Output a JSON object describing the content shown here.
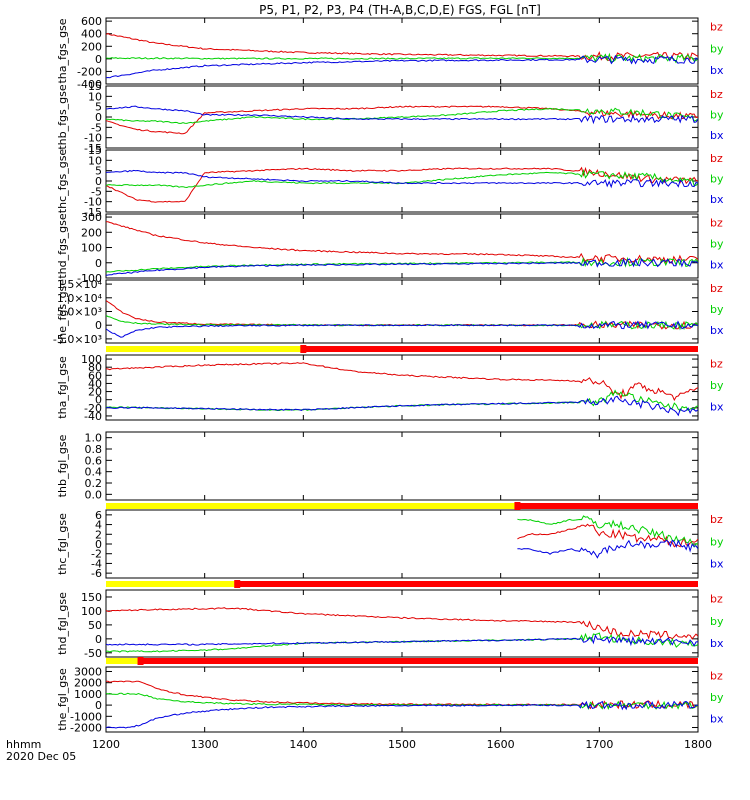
{
  "title": "P5, P1, P2, P3, P4 (TH-A,B,C,D,E) FGS, FGL [nT]",
  "x_axis": {
    "label_line1": "hhmm",
    "label_line2": "2020 Dec 05",
    "ticks": [
      "1200",
      "1300",
      "1400",
      "1500",
      "1600",
      "1700",
      "1800"
    ],
    "range": [
      1200,
      1800
    ]
  },
  "colors": {
    "bz": "#e00000",
    "by": "#00d000",
    "bx": "#0000e0",
    "bar_yellow": "#ffff00",
    "bar_red": "#ff0000"
  },
  "chart_data": [
    {
      "type": "line",
      "ylabel": "tha_fgs_gse",
      "ylim": [
        -400,
        650
      ],
      "yticks": [
        "600",
        "400",
        "200",
        "0",
        "-200",
        "-400"
      ],
      "legend": [
        "bz",
        "by",
        "bx"
      ],
      "x": [
        1200,
        1250,
        1300,
        1400,
        1500,
        1600,
        1700,
        1800
      ],
      "series": [
        {
          "name": "bz",
          "values": [
            400,
            250,
            160,
            100,
            70,
            55,
            40,
            40
          ]
        },
        {
          "name": "by",
          "values": [
            10,
            10,
            5,
            5,
            5,
            10,
            10,
            5
          ]
        },
        {
          "name": "bx",
          "values": [
            -300,
            -180,
            -110,
            -60,
            -30,
            -20,
            -10,
            -10
          ]
        }
      ]
    },
    {
      "type": "line",
      "ylabel": "thb_fgs_gse",
      "ylim": [
        -15,
        15
      ],
      "yticks": [
        "15",
        "10",
        "5",
        "0",
        "-5",
        "-10",
        "-15"
      ],
      "legend": [
        "bz",
        "by",
        "bx"
      ],
      "x": [
        1200,
        1230,
        1250,
        1280,
        1300,
        1350,
        1400,
        1450,
        1500,
        1550,
        1600,
        1650,
        1700,
        1750,
        1800
      ],
      "series": [
        {
          "name": "bz",
          "values": [
            -2,
            -6,
            -7,
            -8,
            2,
            3,
            4,
            4,
            5,
            5,
            5,
            4,
            2,
            1,
            0
          ]
        },
        {
          "name": "by",
          "values": [
            -1,
            -2,
            -2,
            -3,
            -2,
            0,
            -1,
            -1,
            0,
            1,
            3,
            4,
            3,
            2,
            -1
          ]
        },
        {
          "name": "bx",
          "values": [
            4,
            5,
            4,
            3,
            1,
            1,
            0,
            -1,
            -1,
            -1,
            -1,
            -1,
            -1,
            -1,
            -1
          ]
        }
      ]
    },
    {
      "type": "line",
      "ylabel": "thc_fgs_gse",
      "ylim": [
        -15,
        15
      ],
      "yticks": [
        "15",
        "10",
        "5",
        "0",
        "-5",
        "-10",
        "-15"
      ],
      "legend": [
        "bz",
        "by",
        "bx"
      ],
      "x": [
        1200,
        1230,
        1250,
        1280,
        1300,
        1350,
        1400,
        1450,
        1500,
        1550,
        1600,
        1650,
        1700,
        1750,
        1800
      ],
      "series": [
        {
          "name": "bz",
          "values": [
            -2,
            -9,
            -10,
            -10,
            4,
            5,
            6,
            5,
            5,
            6,
            6,
            6,
            4,
            1,
            0
          ]
        },
        {
          "name": "by",
          "values": [
            -2,
            -2,
            -2,
            -3,
            -2,
            0,
            -1,
            -1,
            -1,
            1,
            3,
            4,
            3,
            2,
            -1
          ]
        },
        {
          "name": "bx",
          "values": [
            4,
            5,
            4,
            4,
            2,
            1,
            0,
            0,
            -1,
            -1,
            -1,
            -1,
            -1,
            -1,
            -1
          ]
        }
      ]
    },
    {
      "type": "line",
      "ylabel": "thd_fgs_gse",
      "ylim": [
        -100,
        320
      ],
      "yticks": [
        "300",
        "200",
        "100",
        "0",
        "-100"
      ],
      "legend": [
        "bz",
        "by",
        "bx"
      ],
      "x": [
        1200,
        1250,
        1300,
        1350,
        1400,
        1500,
        1600,
        1700,
        1800
      ],
      "series": [
        {
          "name": "bz",
          "values": [
            270,
            180,
            130,
            100,
            80,
            60,
            55,
            30,
            20
          ]
        },
        {
          "name": "by",
          "values": [
            -60,
            -40,
            -25,
            -15,
            -10,
            -5,
            0,
            5,
            0
          ]
        },
        {
          "name": "bx",
          "values": [
            -80,
            -50,
            -30,
            -20,
            -15,
            -10,
            -5,
            0,
            0
          ]
        }
      ]
    },
    {
      "type": "line",
      "ylabel": "the_fgs_gse",
      "ylim": [
        -6500,
        16500
      ],
      "yticks": [
        "1.5×10⁴",
        "1.0×10⁴",
        "5.0×10³",
        "0",
        "-5.0×10³"
      ],
      "legend": [
        "bz",
        "by",
        "bx"
      ],
      "bar": [
        [
          "yellow",
          1200,
          1400
        ],
        [
          "red",
          1400,
          1800
        ]
      ],
      "x": [
        1200,
        1215,
        1230,
        1250,
        1300,
        1350,
        1400,
        1420,
        1800
      ],
      "series": [
        {
          "name": "bz",
          "values": [
            9000,
            5000,
            2500,
            1200,
            400,
            200,
            100,
            50,
            20
          ]
        },
        {
          "name": "by",
          "values": [
            3500,
            1500,
            800,
            400,
            150,
            80,
            40,
            20,
            10
          ]
        },
        {
          "name": "bx",
          "values": [
            -1500,
            -4500,
            -2000,
            -800,
            -300,
            -150,
            -80,
            -40,
            -10
          ]
        }
      ]
    },
    {
      "type": "line",
      "ylabel": "tha_fgl_gse",
      "ylim": [
        -50,
        110
      ],
      "yticks": [
        "100",
        "80",
        "60",
        "40",
        "20",
        "0",
        "-20",
        "-40"
      ],
      "legend": [
        "bz",
        "by",
        "bx"
      ],
      "x": [
        1200,
        1250,
        1300,
        1350,
        1400,
        1450,
        1500,
        1550,
        1600,
        1650,
        1700,
        1720,
        1740,
        1760,
        1780,
        1800
      ],
      "series": [
        {
          "name": "bz",
          "values": [
            75,
            80,
            85,
            88,
            90,
            70,
            60,
            55,
            50,
            48,
            45,
            10,
            35,
            20,
            5,
            30
          ]
        },
        {
          "name": "by",
          "values": [
            -18,
            -20,
            -22,
            -25,
            -25,
            -20,
            -15,
            -12,
            -10,
            -8,
            -5,
            20,
            0,
            -10,
            -20,
            -15
          ]
        },
        {
          "name": "bx",
          "values": [
            -20,
            -20,
            -22,
            -24,
            -25,
            -20,
            -15,
            -12,
            -10,
            -8,
            -5,
            0,
            -10,
            -20,
            -30,
            -25
          ]
        }
      ]
    },
    {
      "type": "line",
      "ylabel": "thb_fgl_gse",
      "ylim": [
        -0.1,
        1.1
      ],
      "yticks": [
        "1.0",
        "0.8",
        "0.6",
        "0.4",
        "0.2",
        "0.0"
      ],
      "legend": [],
      "bar": [
        [
          "yellow",
          1200,
          1617
        ],
        [
          "red",
          1617,
          1800
        ]
      ],
      "x": [],
      "series": []
    },
    {
      "type": "line",
      "ylabel": "thc_fgl_gse",
      "ylim": [
        -7,
        7
      ],
      "yticks": [
        "6",
        "4",
        "2",
        "0",
        "-2",
        "-4",
        "-6"
      ],
      "legend": [
        "bz",
        "by",
        "bx"
      ],
      "bar": [
        [
          "yellow",
          1200,
          1333
        ],
        [
          "red",
          1333,
          1800
        ]
      ],
      "x": [
        1617,
        1630,
        1650,
        1670,
        1690,
        1700,
        1720,
        1740,
        1760,
        1780,
        1800
      ],
      "series": [
        {
          "name": "bz",
          "values": [
            1,
            2,
            2,
            3,
            4,
            2,
            2,
            1,
            1,
            0,
            1
          ]
        },
        {
          "name": "by",
          "values": [
            5,
            5,
            4,
            5,
            5,
            4,
            4,
            3,
            2,
            1,
            0
          ]
        },
        {
          "name": "bx",
          "values": [
            -1,
            -1,
            -2,
            -1,
            -2,
            -2,
            0,
            0,
            0,
            0,
            -1
          ]
        }
      ]
    },
    {
      "type": "line",
      "ylabel": "thd_fgl_gse",
      "ylim": [
        -65,
        175
      ],
      "yticks": [
        "150",
        "100",
        "50",
        "0",
        "-50"
      ],
      "legend": [
        "bz",
        "by",
        "bx"
      ],
      "bar": [
        [
          "yellow",
          1200,
          1235
        ],
        [
          "red",
          1235,
          1800
        ]
      ],
      "x": [
        1200,
        1250,
        1300,
        1330,
        1400,
        1500,
        1600,
        1680,
        1700,
        1720,
        1750,
        1800
      ],
      "series": [
        {
          "name": "bz",
          "values": [
            100,
            105,
            108,
            110,
            90,
            75,
            65,
            60,
            40,
            20,
            15,
            10
          ]
        },
        {
          "name": "by",
          "values": [
            -45,
            -45,
            -40,
            -35,
            -15,
            -10,
            -5,
            0,
            10,
            0,
            -10,
            -20
          ]
        },
        {
          "name": "bx",
          "values": [
            -20,
            -20,
            -20,
            -18,
            -15,
            -10,
            -5,
            0,
            0,
            -5,
            -10,
            -10
          ]
        }
      ]
    },
    {
      "type": "line",
      "ylabel": "the_fgl_gse",
      "ylim": [
        -2400,
        3400
      ],
      "yticks": [
        "3000",
        "2000",
        "1000",
        "0",
        "-1000",
        "-2000"
      ],
      "legend": [
        "bz",
        "by",
        "bx"
      ],
      "x": [
        1200,
        1220,
        1235,
        1250,
        1280,
        1320,
        1360,
        1420,
        1500,
        1600,
        1800
      ],
      "series": [
        {
          "name": "bz",
          "values": [
            2100,
            2100,
            2100,
            1500,
            900,
            500,
            300,
            150,
            80,
            50,
            30
          ]
        },
        {
          "name": "by",
          "values": [
            1000,
            1000,
            1000,
            600,
            300,
            150,
            80,
            40,
            20,
            10,
            5
          ]
        },
        {
          "name": "bx",
          "values": [
            -2000,
            -2000,
            -1800,
            -1200,
            -700,
            -400,
            -200,
            -100,
            -50,
            -20,
            -10
          ]
        }
      ]
    }
  ]
}
